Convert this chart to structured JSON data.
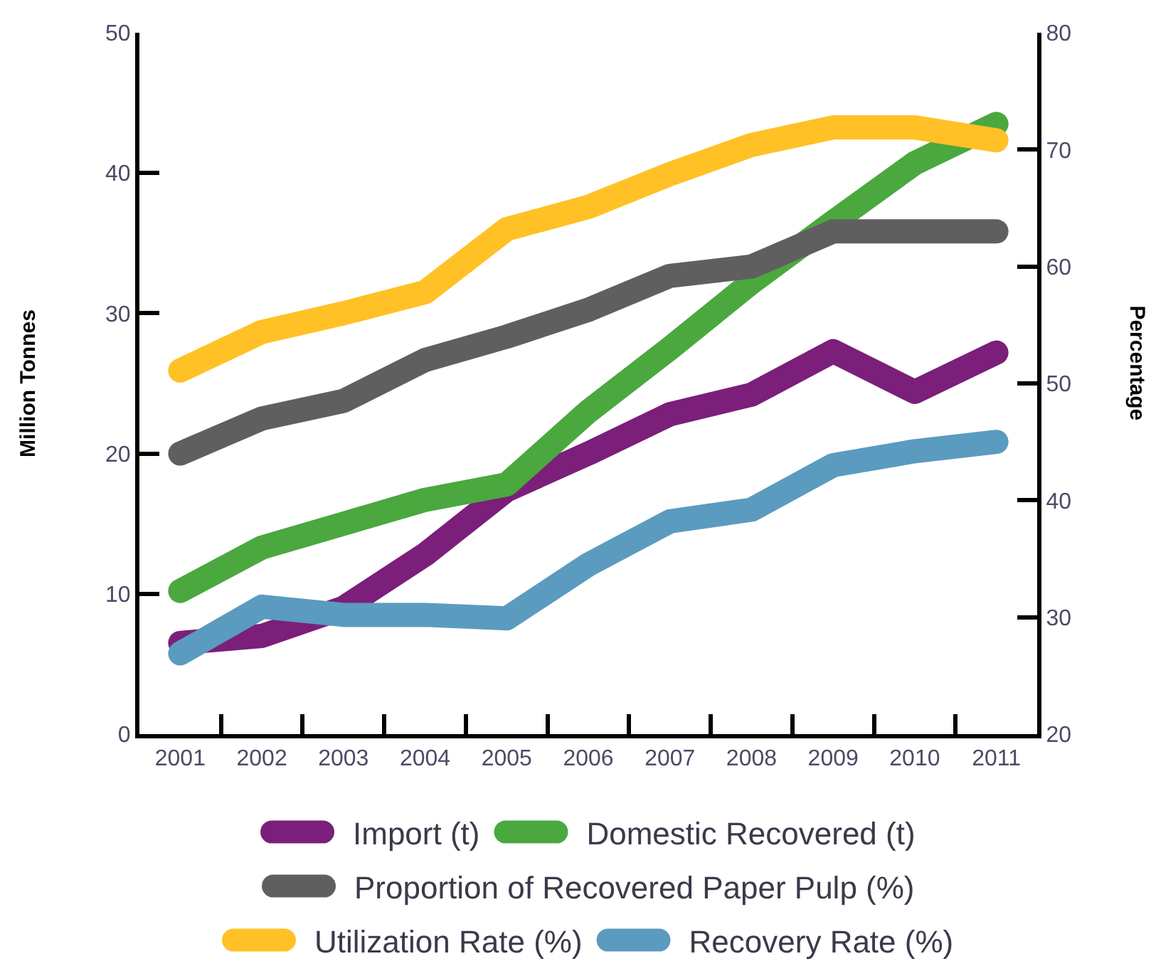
{
  "chart_data": {
    "type": "line",
    "categories": [
      "2001",
      "2002",
      "2003",
      "2004",
      "2005",
      "2006",
      "2007",
      "2008",
      "2009",
      "2010",
      "2011"
    ],
    "ylabel": "Million Tonnes",
    "y2label": "Percentage",
    "ylim": [
      0,
      50
    ],
    "yticks": [
      0,
      10,
      20,
      30,
      40,
      50
    ],
    "y2lim": [
      20,
      80
    ],
    "y2ticks": [
      20,
      30,
      40,
      50,
      60,
      70,
      80
    ],
    "legend": "bottom",
    "grid": false,
    "line_style": "solid",
    "series": [
      {
        "name": "Import (t)",
        "color": "#7b1f7a",
        "values": [
          6.5,
          7,
          9,
          12.8,
          17.4,
          20,
          22.8,
          24.2,
          27.3,
          24.4,
          27.2
        ]
      },
      {
        "name": "Domestic Recovered (t)",
        "color": "#4aa83f",
        "values": [
          10.2,
          13.3,
          15,
          16.7,
          17.8,
          23,
          27.5,
          32.2,
          36.5,
          40.7,
          43.5
        ]
      },
      {
        "name": "Proportion of Recovered Paper Pulp (%)",
        "color": "#5f5f5f",
        "axis": "y2",
        "values": [
          44,
          47,
          48.5,
          52,
          54,
          56.3,
          59.2,
          60,
          63,
          63,
          63
        ]
      },
      {
        "name": "Utilization Rate (%)",
        "color": "#ffc125",
        "axis": "y2",
        "values": [
          51.1,
          54.4,
          56,
          57.8,
          63.2,
          65.1,
          67.9,
          70.4,
          71.9,
          71.9,
          70.8
        ]
      },
      {
        "name": "Recovery Rate (%)",
        "color": "#5a9bbf",
        "axis": "y2",
        "values": [
          26.9,
          30.9,
          30.2,
          30.2,
          29.9,
          34.5,
          38.2,
          39.2,
          43,
          44.2,
          45
        ]
      }
    ]
  }
}
